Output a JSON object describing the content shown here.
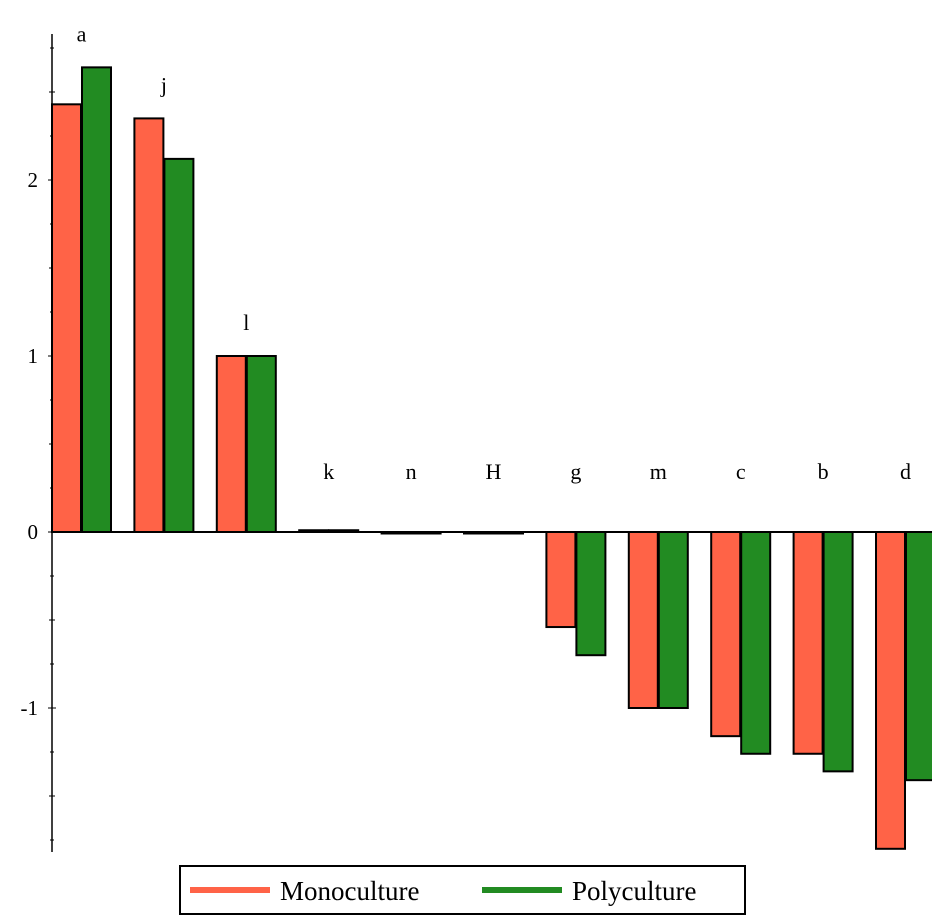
{
  "chart_data": {
    "type": "bar",
    "categories": [
      "a",
      "j",
      "l",
      "k",
      "n",
      "H",
      "g",
      "m",
      "c",
      "b",
      "d"
    ],
    "series": [
      {
        "name": "Monoculture",
        "values": [
          2.43,
          2.35,
          1.0,
          0.01,
          0.0,
          0.0,
          -0.54,
          -1.0,
          -1.16,
          -1.26,
          -1.8
        ]
      },
      {
        "name": "Polyculture",
        "values": [
          2.64,
          2.12,
          1.0,
          0.01,
          0.0,
          0.0,
          -0.7,
          -1.0,
          -1.26,
          -1.36,
          -1.41
        ]
      }
    ],
    "colors": {
      "Monoculture": "#FF6347",
      "Polyculture": "#228B22"
    },
    "title": "",
    "xlabel": "",
    "ylabel": "",
    "ylim": [
      -1.8,
      2.85
    ],
    "yticks": [
      -1,
      0,
      1,
      2
    ],
    "grid": false,
    "legend_position": "bottom"
  }
}
